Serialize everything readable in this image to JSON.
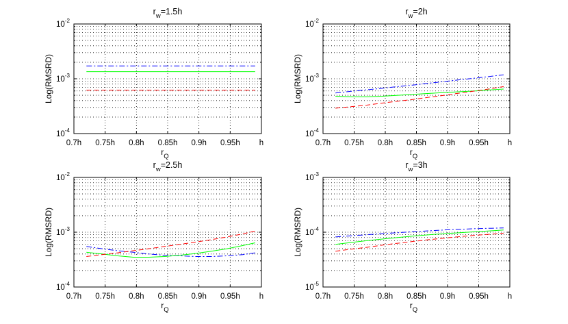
{
  "chart_data": [
    {
      "type": "line",
      "title": {
        "base": "r",
        "sub": "w",
        "rest": "=1.5h"
      },
      "ylabel": "Log(RMSRD)",
      "xlabel": {
        "base": "r",
        "sub": "Q"
      },
      "yscale": "log",
      "ylim": [
        0.0001,
        0.01
      ],
      "xlim": [
        0.7,
        1.0
      ],
      "xticks": [
        0.7,
        0.75,
        0.8,
        0.85,
        0.9,
        0.95,
        1.0
      ],
      "xticklabels": [
        "0.7h",
        "0.75h",
        "0.8h",
        "0.85h",
        "0.9h",
        "0.95h",
        "h"
      ],
      "yticks": [
        {
          "value": 0.0001,
          "base": "10",
          "exp": "-4"
        },
        {
          "value": 0.001,
          "base": "10",
          "exp": "-3"
        },
        {
          "value": 0.01,
          "base": "10",
          "exp": "-2"
        }
      ],
      "grid": true,
      "x": [
        0.72,
        0.745,
        0.77,
        0.795,
        0.82,
        0.845,
        0.87,
        0.895,
        0.92,
        0.945,
        0.97,
        0.99
      ],
      "series": [
        {
          "name": "blue",
          "color": "#0000ff",
          "dash": "8,3,2,3",
          "values": [
            0.00172,
            0.00172,
            0.00172,
            0.00172,
            0.00172,
            0.00172,
            0.00172,
            0.00172,
            0.00172,
            0.00172,
            0.00172,
            0.00172
          ]
        },
        {
          "name": "green",
          "color": "#00ff00",
          "dash": "",
          "values": [
            0.00135,
            0.00135,
            0.00135,
            0.00135,
            0.00135,
            0.00135,
            0.00135,
            0.00135,
            0.00135,
            0.00135,
            0.00135,
            0.00135
          ]
        },
        {
          "name": "red",
          "color": "#ff0000",
          "dash": "7,4",
          "values": [
            0.00062,
            0.00062,
            0.00062,
            0.00062,
            0.00062,
            0.00062,
            0.00062,
            0.00062,
            0.00062,
            0.00062,
            0.00062,
            0.00062
          ]
        }
      ]
    },
    {
      "type": "line",
      "title": {
        "base": "r",
        "sub": "w",
        "rest": "=2h"
      },
      "ylabel": "Log(RMSRD)",
      "xlabel": {
        "base": "r",
        "sub": "Q"
      },
      "yscale": "log",
      "ylim": [
        0.0001,
        0.01
      ],
      "xlim": [
        0.7,
        1.0
      ],
      "xticks": [
        0.7,
        0.75,
        0.8,
        0.85,
        0.9,
        0.95,
        1.0
      ],
      "xticklabels": [
        "0.7h",
        "0.75h",
        "0.8h",
        "0.85h",
        "0.9h",
        "0.95h",
        "h"
      ],
      "yticks": [
        {
          "value": 0.0001,
          "base": "10",
          "exp": "-4"
        },
        {
          "value": 0.001,
          "base": "10",
          "exp": "-3"
        },
        {
          "value": 0.01,
          "base": "10",
          "exp": "-2"
        }
      ],
      "grid": true,
      "x": [
        0.72,
        0.745,
        0.77,
        0.795,
        0.82,
        0.845,
        0.87,
        0.895,
        0.92,
        0.945,
        0.97,
        0.99
      ],
      "series": [
        {
          "name": "blue",
          "color": "#0000ff",
          "dash": "8,3,2,3",
          "values": [
            0.00055,
            0.00059,
            0.00063,
            0.00067,
            0.00072,
            0.00077,
            0.00083,
            0.00089,
            0.00096,
            0.00103,
            0.00111,
            0.00118
          ]
        },
        {
          "name": "green",
          "color": "#00ff00",
          "dash": "",
          "values": [
            0.00048,
            0.00047,
            0.00047,
            0.00048,
            0.0005,
            0.00052,
            0.00054,
            0.00056,
            0.00058,
            0.0006,
            0.00063,
            0.00065
          ]
        },
        {
          "name": "red",
          "color": "#ff0000",
          "dash": "7,4",
          "values": [
            0.00029,
            0.00031,
            0.00033,
            0.00036,
            0.00039,
            0.00042,
            0.00046,
            0.0005,
            0.00055,
            0.0006,
            0.00066,
            0.00072
          ]
        }
      ]
    },
    {
      "type": "line",
      "title": {
        "base": "r",
        "sub": "w",
        "rest": "=2.5h"
      },
      "ylabel": "Log(RMSRD)",
      "xlabel": {
        "base": "r",
        "sub": "Q"
      },
      "yscale": "log",
      "ylim": [
        0.0001,
        0.01
      ],
      "xlim": [
        0.7,
        1.0
      ],
      "xticks": [
        0.7,
        0.75,
        0.8,
        0.85,
        0.9,
        0.95,
        1.0
      ],
      "xticklabels": [
        "0.7h",
        "0.75h",
        "0.8h",
        "0.85h",
        "0.9h",
        "0.95h",
        "h"
      ],
      "yticks": [
        {
          "value": 0.0001,
          "base": "10",
          "exp": "-4"
        },
        {
          "value": 0.001,
          "base": "10",
          "exp": "-3"
        },
        {
          "value": 0.01,
          "base": "10",
          "exp": "-2"
        }
      ],
      "grid": true,
      "x": [
        0.72,
        0.745,
        0.77,
        0.795,
        0.82,
        0.845,
        0.87,
        0.895,
        0.92,
        0.945,
        0.97,
        0.99
      ],
      "series": [
        {
          "name": "blue",
          "color": "#0000ff",
          "dash": "8,3,2,3",
          "values": [
            0.00055,
            0.0005,
            0.00046,
            0.00043,
            0.0004,
            0.00038,
            0.00037,
            0.00036,
            0.00036,
            0.00037,
            0.00039,
            0.00042
          ]
        },
        {
          "name": "green",
          "color": "#00ff00",
          "dash": "",
          "values": [
            0.00043,
            0.0004,
            0.00037,
            0.00035,
            0.00035,
            0.00036,
            0.00038,
            0.00041,
            0.00045,
            0.0005,
            0.00057,
            0.00064
          ]
        },
        {
          "name": "red",
          "color": "#ff0000",
          "dash": "7,4",
          "values": [
            0.00036,
            0.00039,
            0.00042,
            0.00046,
            0.0005,
            0.00055,
            0.0006,
            0.00066,
            0.00073,
            0.00082,
            0.00093,
            0.00105
          ]
        }
      ]
    },
    {
      "type": "line",
      "title": {
        "base": "r",
        "sub": "w",
        "rest": "=3h"
      },
      "ylabel": "Log(RMSRD)",
      "xlabel": {
        "base": "r",
        "sub": "Q"
      },
      "yscale": "log",
      "ylim": [
        1e-05,
        0.001
      ],
      "xlim": [
        0.7,
        1.0
      ],
      "xticks": [
        0.7,
        0.75,
        0.8,
        0.85,
        0.9,
        0.95,
        1.0
      ],
      "xticklabels": [
        "0.7h",
        "0.75h",
        "0.8h",
        "0.85h",
        "0.9h",
        "0.95h",
        "h"
      ],
      "yticks": [
        {
          "value": 1e-05,
          "base": "10",
          "exp": "-5"
        },
        {
          "value": 0.0001,
          "base": "10",
          "exp": "-4"
        },
        {
          "value": 0.001,
          "base": "10",
          "exp": "-3"
        }
      ],
      "grid": true,
      "x": [
        0.72,
        0.745,
        0.77,
        0.795,
        0.82,
        0.845,
        0.87,
        0.895,
        0.92,
        0.945,
        0.97,
        0.99
      ],
      "series": [
        {
          "name": "blue",
          "color": "#0000ff",
          "dash": "8,3,2,3",
          "values": [
            8.2e-05,
            8.6e-05,
            9e-05,
            9.4e-05,
            9.8e-05,
            0.000102,
            0.000106,
            0.00011,
            0.000113,
            0.000116,
            0.000118,
            0.00012
          ]
        },
        {
          "name": "green",
          "color": "#00ff00",
          "dash": "",
          "values": [
            6e-05,
            6.5e-05,
            7e-05,
            7.5e-05,
            8e-05,
            8.5e-05,
            9e-05,
            9.4e-05,
            9.8e-05,
            0.000102,
            0.000106,
            0.00011
          ]
        },
        {
          "name": "red",
          "color": "#ff0000",
          "dash": "7,4",
          "values": [
            4.5e-05,
            4.9e-05,
            5.3e-05,
            5.8e-05,
            6.3e-05,
            6.8e-05,
            7.3e-05,
            7.8e-05,
            8.3e-05,
            8.8e-05,
            9.2e-05,
            9.6e-05
          ]
        }
      ]
    }
  ]
}
